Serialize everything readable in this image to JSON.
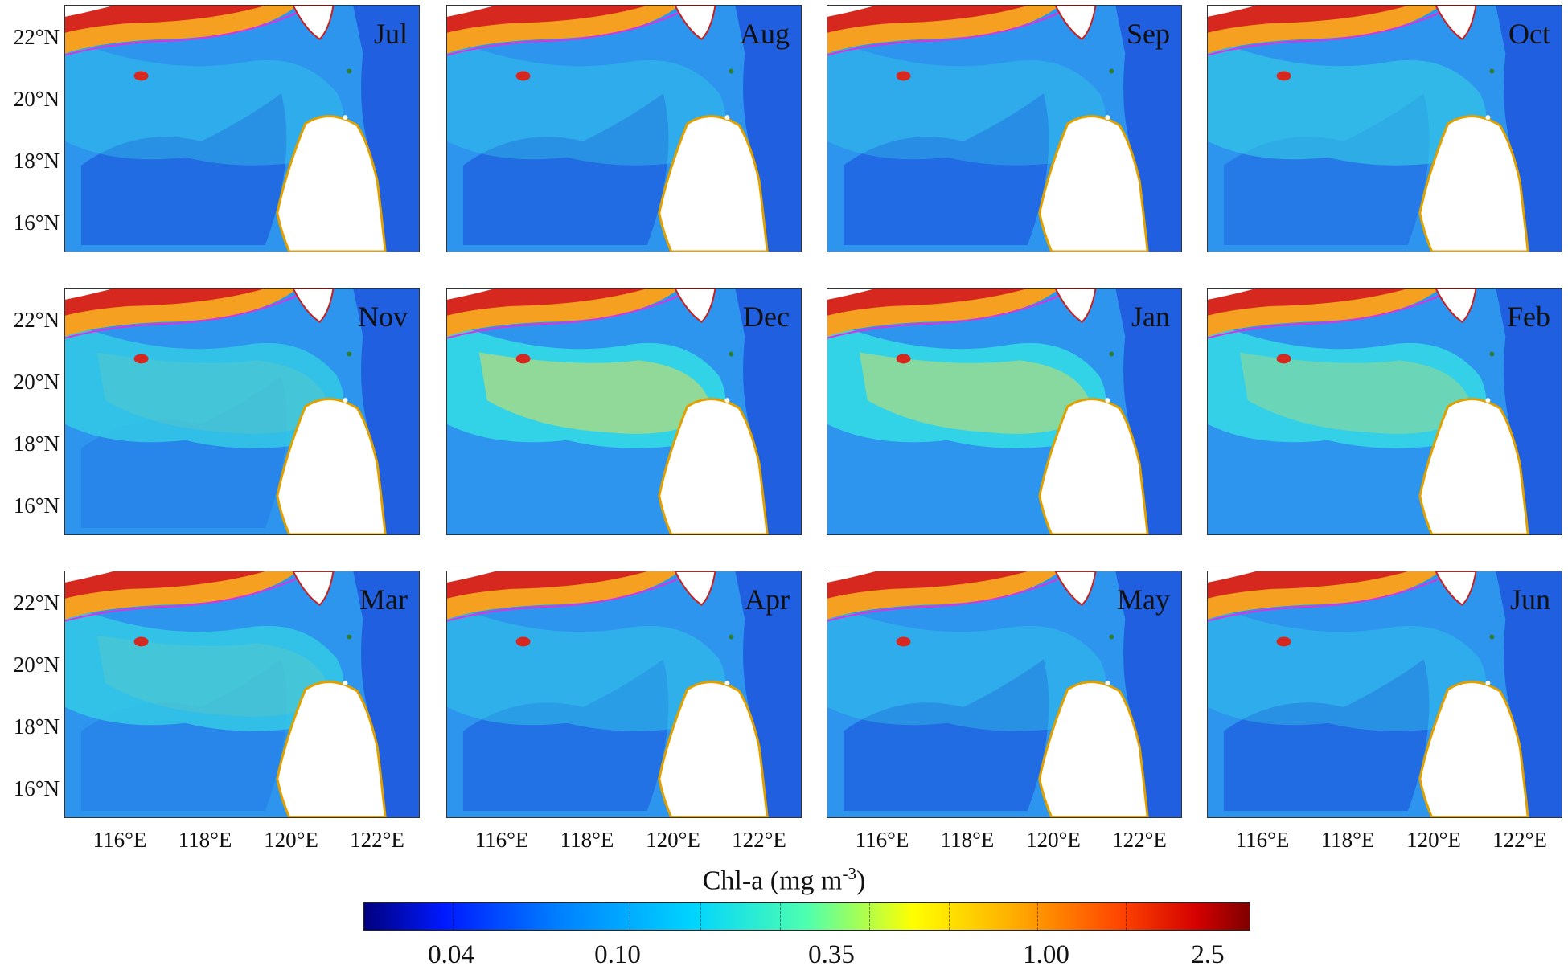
{
  "panels": [
    {
      "month": "Jul",
      "bloom": 0.1
    },
    {
      "month": "Aug",
      "bloom": 0.1
    },
    {
      "month": "Sep",
      "bloom": 0.08
    },
    {
      "month": "Oct",
      "bloom": 0.3
    },
    {
      "month": "Nov",
      "bloom": 0.45
    },
    {
      "month": "Dec",
      "bloom": 0.85
    },
    {
      "month": "Jan",
      "bloom": 0.8
    },
    {
      "month": "Feb",
      "bloom": 0.65
    },
    {
      "month": "Mar",
      "bloom": 0.45
    },
    {
      "month": "Apr",
      "bloom": 0.18
    },
    {
      "month": "May",
      "bloom": 0.1
    },
    {
      "month": "Jun",
      "bloom": 0.1
    }
  ],
  "lat_labels": [
    "22°N",
    "20°N",
    "18°N",
    "16°N"
  ],
  "lon_labels": [
    "116°E",
    "118°E",
    "120°E",
    "122°E"
  ],
  "colorbar": {
    "title": "Chl-a (mg m",
    "title_sup": "-3",
    "title_end": ")",
    "ticks": [
      "0.04",
      "0.10",
      "0.35",
      "1.00",
      "2.5"
    ]
  },
  "colors": {
    "deep_ocean": "#1f5fe0",
    "ocean": "#2d95ee",
    "mid_chl": "#34d6e6",
    "high_chl": "#f0e04a",
    "coast_red": "#d6281e",
    "land": "#ffffff",
    "contour": "#e030e0"
  }
}
